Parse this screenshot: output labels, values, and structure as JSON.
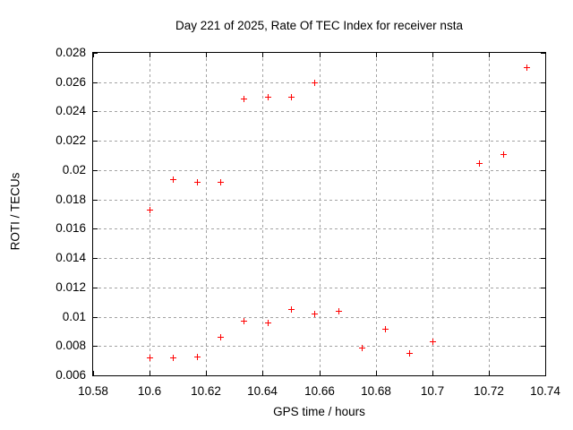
{
  "chart_data": {
    "type": "scatter",
    "title": "Day 221 of 2025, Rate Of TEC Index for receiver nsta",
    "xlabel": "GPS time / hours",
    "ylabel": "ROTI / TECUs",
    "xlim": [
      10.58,
      10.74
    ],
    "ylim": [
      0.006,
      0.028
    ],
    "x_ticks": [
      10.58,
      10.6,
      10.62,
      10.64,
      10.66,
      10.68,
      10.7,
      10.72,
      10.74
    ],
    "x_tick_labels": [
      "10.58",
      "10.6",
      "10.62",
      "10.64",
      "10.66",
      "10.68",
      "10.7",
      "10.72",
      "10.74"
    ],
    "y_ticks": [
      0.006,
      0.008,
      0.01,
      0.012,
      0.014,
      0.016,
      0.018,
      0.02,
      0.022,
      0.024,
      0.026,
      0.028
    ],
    "y_tick_labels": [
      "0.006",
      "0.008",
      "0.01",
      "0.012",
      "0.014",
      "0.016",
      "0.018",
      "0.02",
      "0.022",
      "0.024",
      "0.026",
      "0.028"
    ],
    "grid": true,
    "legend": "none",
    "marker": {
      "shape": "plus",
      "color": "#ff0000",
      "size": 7
    },
    "colors": {
      "grid": "#a3a3a3",
      "axis": "#000000",
      "background": "#ffffff",
      "text": "#000000"
    },
    "series": [
      {
        "name": "ROTI",
        "points": [
          [
            10.6,
            0.0173
          ],
          [
            10.6,
            0.0072
          ],
          [
            10.6083,
            0.0194
          ],
          [
            10.6083,
            0.0072
          ],
          [
            10.6167,
            0.0192
          ],
          [
            10.6167,
            0.0073
          ],
          [
            10.625,
            0.0192
          ],
          [
            10.625,
            0.0086
          ],
          [
            10.6333,
            0.0249
          ],
          [
            10.6333,
            0.0097
          ],
          [
            10.6417,
            0.025
          ],
          [
            10.6417,
            0.0096
          ],
          [
            10.65,
            0.025
          ],
          [
            10.65,
            0.0105
          ],
          [
            10.6583,
            0.026
          ],
          [
            10.6583,
            0.0102
          ],
          [
            10.6667,
            0.0104
          ],
          [
            10.675,
            0.0079
          ],
          [
            10.6833,
            0.0092
          ],
          [
            10.6917,
            0.0075
          ],
          [
            10.7,
            0.0083
          ],
          [
            10.7167,
            0.0205
          ],
          [
            10.725,
            0.0211
          ],
          [
            10.7333,
            0.027
          ]
        ]
      }
    ]
  }
}
